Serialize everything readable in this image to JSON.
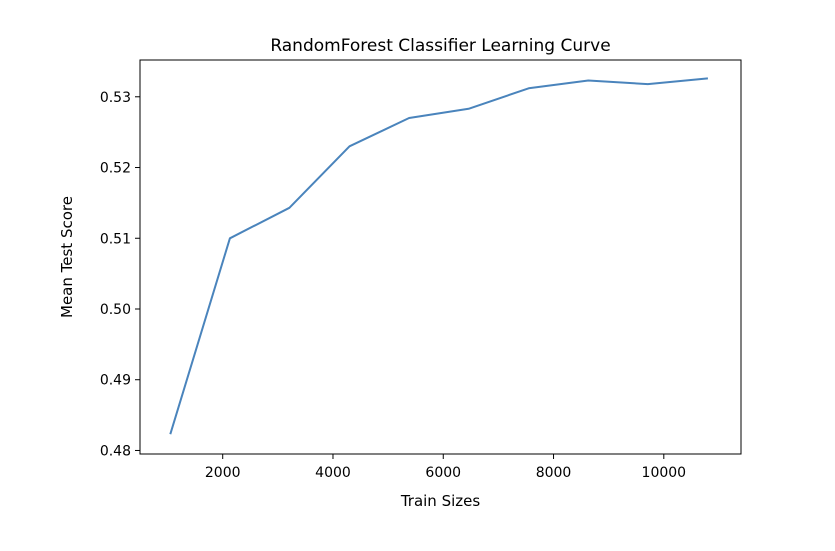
{
  "chart_data": {
    "type": "line",
    "title": "RandomForest Classifier Learning Curve",
    "xlabel": "Train Sizes",
    "ylabel": "Mean Test Score",
    "xlim": [
      500,
      11400
    ],
    "ylim": [
      0.4795,
      0.5352
    ],
    "xticks": [
      2000,
      4000,
      6000,
      8000,
      10000
    ],
    "yticks": [
      0.48,
      0.49,
      0.5,
      0.51,
      0.52,
      0.53
    ],
    "ytick_labels": [
      "0.48",
      "0.49",
      "0.50",
      "0.51",
      "0.52",
      "0.53"
    ],
    "grid": false,
    "series": [
      {
        "color": "#4a84bc",
        "x": [
          1050,
          2130,
          3210,
          4300,
          5380,
          6460,
          7550,
          8630,
          9710,
          10800
        ],
        "y": [
          0.4823,
          0.51,
          0.5143,
          0.523,
          0.527,
          0.5283,
          0.5312,
          0.5323,
          0.5318,
          0.5326
        ]
      }
    ]
  }
}
